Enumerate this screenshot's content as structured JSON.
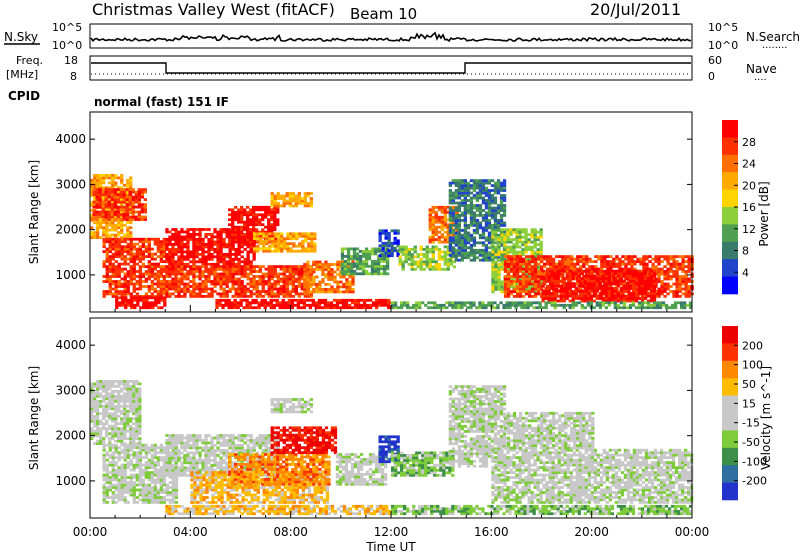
{
  "header": {
    "title": "Christmas Valley West (fitACF)",
    "beam": "Beam 10",
    "date": "20/Jul/2011"
  },
  "noise_panel": {
    "left_label": "N.Sky",
    "left_ticks": [
      "10^5",
      "10^0"
    ],
    "right_ticks": [
      "10^5",
      "10^0"
    ],
    "right_label": "N.Search",
    "right_dots": "........"
  },
  "freq_panel": {
    "label_line1": "Freq.",
    "label_line2": "[MHz]",
    "left_ticks": [
      "18",
      "8"
    ],
    "right_ticks": [
      "60",
      "0"
    ],
    "right_label": "Nave",
    "right_dots": "....",
    "cpid_label": "CPID",
    "cpid_text": "normal (fast) 151 IF"
  },
  "x_axis": {
    "label": "Time UT",
    "ticks": [
      "00:00",
      "04:00",
      "08:00",
      "12:00",
      "16:00",
      "20:00",
      "00:00"
    ]
  },
  "colors": {
    "power": [
      "#0000ff",
      "#2244cc",
      "#3a7a6a",
      "#4fa050",
      "#8ccf3a",
      "#ffd400",
      "#ffaa00",
      "#ff7000",
      "#ff3000",
      "#ff0000"
    ],
    "velocity": [
      "#2233cc",
      "#2e6fa0",
      "#3e8e4a",
      "#7fcc3a",
      "#c8c8c8",
      "#c8c8c8",
      "#ffbb00",
      "#ff8800",
      "#ff3300",
      "#ee0000"
    ]
  },
  "chart_data": [
    {
      "type": "heatmap",
      "name": "power",
      "ylabel": "Slant Range [km]",
      "xlabel": "",
      "yticks": [
        1000,
        2000,
        3000,
        4000
      ],
      "ylim": [
        180,
        4600
      ],
      "xlim_hours": [
        0,
        24
      ],
      "colorbar": {
        "label": "Power [dB]",
        "ticks": [
          "28",
          "24",
          "20",
          "16",
          "12",
          "8",
          "4"
        ],
        "range": [
          0,
          30
        ]
      },
      "regions": [
        {
          "t0": 0.0,
          "t1": 1.6,
          "r0": 1800,
          "r1": 3200,
          "c": 6
        },
        {
          "t0": 0.1,
          "t1": 2.2,
          "r0": 2200,
          "r1": 2900,
          "c": 8
        },
        {
          "t0": 0.5,
          "t1": 3.0,
          "r0": 500,
          "r1": 1800,
          "c": 8
        },
        {
          "t0": 1.0,
          "t1": 3.0,
          "r0": 250,
          "r1": 500,
          "c": 9
        },
        {
          "t0": 3.0,
          "t1": 6.5,
          "r0": 1100,
          "r1": 2000,
          "c": 9
        },
        {
          "t0": 3.0,
          "t1": 8.8,
          "r0": 500,
          "r1": 1200,
          "c": 8
        },
        {
          "t0": 5.5,
          "t1": 7.5,
          "r0": 1700,
          "r1": 2500,
          "c": 9
        },
        {
          "t0": 6.5,
          "t1": 9.0,
          "r0": 1500,
          "r1": 1900,
          "c": 6
        },
        {
          "t0": 7.2,
          "t1": 8.8,
          "r0": 2500,
          "r1": 2800,
          "c": 6
        },
        {
          "t0": 8.5,
          "t1": 10.5,
          "r0": 600,
          "r1": 1300,
          "c": 7
        },
        {
          "t0": 5.0,
          "t1": 12.0,
          "r0": 250,
          "r1": 450,
          "c": 9
        },
        {
          "t0": 10.0,
          "t1": 11.8,
          "r0": 1000,
          "r1": 1600,
          "c": 3
        },
        {
          "t0": 11.5,
          "t1": 12.3,
          "r0": 1400,
          "r1": 2000,
          "c": 1
        },
        {
          "t0": 12.3,
          "t1": 14.5,
          "r0": 1100,
          "r1": 1600,
          "c": 4
        },
        {
          "t0": 13.5,
          "t1": 14.6,
          "r0": 1700,
          "r1": 2500,
          "c": 7
        },
        {
          "t0": 14.3,
          "t1": 16.5,
          "r0": 1300,
          "r1": 3100,
          "c": 2
        },
        {
          "t0": 16.0,
          "t1": 18.0,
          "r0": 600,
          "r1": 2000,
          "c": 4
        },
        {
          "t0": 16.5,
          "t1": 24.0,
          "r0": 500,
          "r1": 1400,
          "c": 8
        },
        {
          "t0": 18.0,
          "t1": 22.5,
          "r0": 400,
          "r1": 1100,
          "c": 9
        },
        {
          "t0": 12.0,
          "t1": 24.0,
          "r0": 250,
          "r1": 400,
          "c": 3
        }
      ]
    },
    {
      "type": "heatmap",
      "name": "velocity",
      "ylabel": "Slant Range [km]",
      "xlabel": "Time UT",
      "yticks": [
        1000,
        2000,
        3000,
        4000
      ],
      "ylim": [
        180,
        4600
      ],
      "xlim_hours": [
        0,
        24
      ],
      "colorbar": {
        "label": "Velocity [m s^-1]",
        "ticks": [
          "200",
          "100",
          "50",
          "15",
          "-15",
          "-50",
          "-100",
          "-200"
        ],
        "range": [
          -250,
          250
        ]
      },
      "regions": [
        {
          "t0": 0.0,
          "t1": 2.0,
          "r0": 1800,
          "r1": 3200,
          "c": 4
        },
        {
          "t0": 0.5,
          "t1": 3.5,
          "r0": 500,
          "r1": 1800,
          "c": 4
        },
        {
          "t0": 3.0,
          "t1": 7.5,
          "r0": 1100,
          "r1": 2000,
          "c": 4
        },
        {
          "t0": 4.0,
          "t1": 9.5,
          "r0": 500,
          "r1": 1200,
          "c": 6
        },
        {
          "t0": 5.5,
          "t1": 9.5,
          "r0": 900,
          "r1": 1600,
          "c": 7
        },
        {
          "t0": 7.2,
          "t1": 9.8,
          "r0": 1600,
          "r1": 2200,
          "c": 9
        },
        {
          "t0": 7.2,
          "t1": 8.8,
          "r0": 2500,
          "r1": 2800,
          "c": 4
        },
        {
          "t0": 9.8,
          "t1": 11.8,
          "r0": 900,
          "r1": 1600,
          "c": 4
        },
        {
          "t0": 11.5,
          "t1": 12.3,
          "r0": 1400,
          "r1": 2000,
          "c": 0
        },
        {
          "t0": 12.0,
          "t1": 14.5,
          "r0": 1100,
          "r1": 1600,
          "c": 3
        },
        {
          "t0": 14.3,
          "t1": 16.5,
          "r0": 1300,
          "r1": 3100,
          "c": 4
        },
        {
          "t0": 16.0,
          "t1": 24.0,
          "r0": 500,
          "r1": 1700,
          "c": 4
        },
        {
          "t0": 16.5,
          "t1": 20.0,
          "r0": 1700,
          "r1": 2500,
          "c": 4
        },
        {
          "t0": 3.0,
          "t1": 12.0,
          "r0": 250,
          "r1": 450,
          "c": 6
        },
        {
          "t0": 12.0,
          "t1": 24.0,
          "r0": 250,
          "r1": 450,
          "c": 3
        }
      ]
    }
  ]
}
